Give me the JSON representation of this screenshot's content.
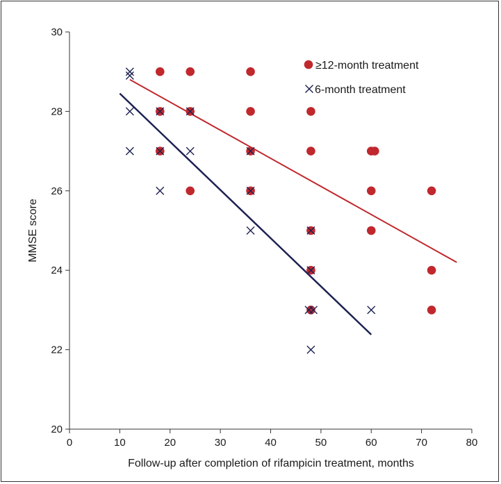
{
  "chart_data": {
    "type": "scatter",
    "xlabel": "Follow-up after completion of rifampicin treatment, months",
    "ylabel": "MMSE score",
    "xlim": [
      0,
      80
    ],
    "ylim": [
      20,
      30
    ],
    "xticks": [
      0,
      10,
      20,
      30,
      40,
      50,
      60,
      70,
      80
    ],
    "yticks": [
      20,
      22,
      24,
      26,
      28,
      30
    ],
    "grid": false,
    "legend_position": "top-right",
    "series": [
      {
        "name": "≥12-month treatment",
        "marker": "circle",
        "color": "#c0282d",
        "points": [
          [
            18,
            29
          ],
          [
            24,
            29
          ],
          [
            36,
            29
          ],
          [
            18,
            28
          ],
          [
            24,
            28
          ],
          [
            36,
            28
          ],
          [
            48,
            28
          ],
          [
            18,
            27
          ],
          [
            36,
            27
          ],
          [
            48,
            27
          ],
          [
            60,
            27
          ],
          [
            60.7,
            27
          ],
          [
            24,
            26
          ],
          [
            36,
            26
          ],
          [
            60,
            26
          ],
          [
            72,
            26
          ],
          [
            48,
            25
          ],
          [
            60,
            25
          ],
          [
            48,
            24
          ],
          [
            72,
            24
          ],
          [
            48,
            23
          ],
          [
            72,
            23
          ]
        ],
        "trendline": {
          "x": [
            12,
            77
          ],
          "y": [
            28.8,
            24.2
          ]
        }
      },
      {
        "name": "6-month treatment",
        "marker": "x",
        "color": "#1c2152",
        "points": [
          [
            12,
            29
          ],
          [
            12,
            28.9
          ],
          [
            12,
            28
          ],
          [
            18,
            28
          ],
          [
            24,
            28
          ],
          [
            12,
            27
          ],
          [
            18,
            27
          ],
          [
            24,
            27
          ],
          [
            36,
            27
          ],
          [
            18,
            26
          ],
          [
            36,
            26
          ],
          [
            36,
            25
          ],
          [
            48,
            25
          ],
          [
            48,
            24
          ],
          [
            47.6,
            23
          ],
          [
            48.5,
            23
          ],
          [
            60,
            23
          ],
          [
            48,
            22
          ]
        ],
        "trendline": {
          "x": [
            10,
            60
          ],
          "y": [
            28.45,
            22.38
          ]
        }
      }
    ]
  }
}
